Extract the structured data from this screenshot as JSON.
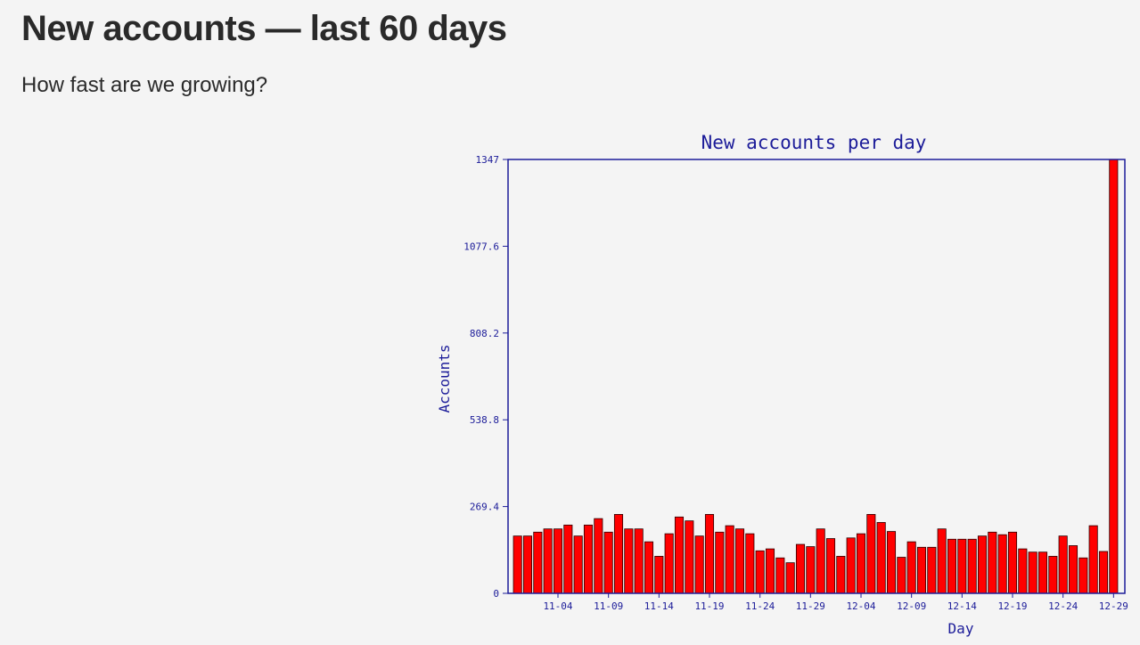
{
  "page": {
    "title": "New accounts — last 60 days",
    "subtitle": "How fast are we growing?"
  },
  "colors": {
    "bar": "#ff0000",
    "bar_edge": "#2b0000",
    "axis": "#1c1c99",
    "background": "#f4f4f4"
  },
  "chart_data": {
    "type": "bar",
    "title": "New accounts per day",
    "xlabel": "Day",
    "ylabel": "Accounts",
    "ylim": [
      0,
      1347
    ],
    "y_ticks": [
      "0",
      "269.4",
      "538.8",
      "808.2",
      "1077.6",
      "1347"
    ],
    "x_tick_labels": [
      "11-04",
      "11-09",
      "11-14",
      "11-19",
      "11-24",
      "11-29",
      "12-04",
      "12-09",
      "12-14",
      "12-19",
      "12-24",
      "12-29"
    ],
    "grid": false,
    "legend": "none",
    "categories": [
      "10-31",
      "11-01",
      "11-02",
      "11-03",
      "11-04",
      "11-05",
      "11-06",
      "11-07",
      "11-08",
      "11-09",
      "11-10",
      "11-11",
      "11-12",
      "11-13",
      "11-14",
      "11-15",
      "11-16",
      "11-17",
      "11-18",
      "11-19",
      "11-20",
      "11-21",
      "11-22",
      "11-23",
      "11-24",
      "11-25",
      "11-26",
      "11-27",
      "11-28",
      "11-29",
      "11-30",
      "12-01",
      "12-02",
      "12-03",
      "12-04",
      "12-05",
      "12-06",
      "12-07",
      "12-08",
      "12-09",
      "12-10",
      "12-11",
      "12-12",
      "12-13",
      "12-14",
      "12-15",
      "12-16",
      "12-17",
      "12-18",
      "12-19",
      "12-20",
      "12-21",
      "12-22",
      "12-23",
      "12-24",
      "12-25",
      "12-26",
      "12-27",
      "12-28",
      "12-29"
    ],
    "values": [
      178,
      178,
      190,
      200,
      200,
      212,
      178,
      212,
      232,
      190,
      245,
      200,
      200,
      160,
      115,
      185,
      237,
      225,
      178,
      245,
      190,
      210,
      200,
      185,
      132,
      138,
      110,
      95,
      152,
      145,
      200,
      170,
      115,
      172,
      185,
      245,
      220,
      192,
      112,
      160,
      143,
      143,
      200,
      168,
      168,
      168,
      178,
      190,
      182,
      190,
      138,
      128,
      128,
      115,
      178,
      148,
      110,
      210,
      130,
      1347
    ]
  }
}
